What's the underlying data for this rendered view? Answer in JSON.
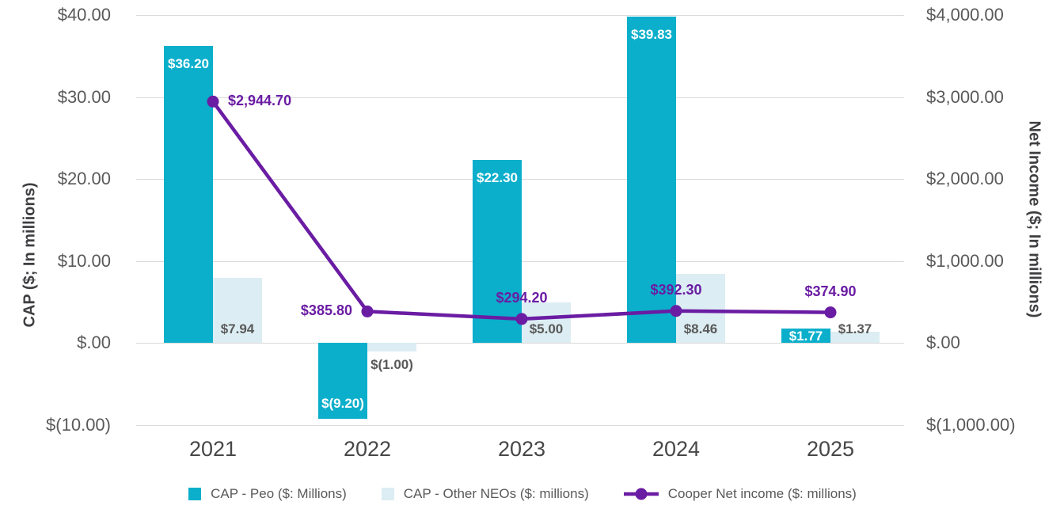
{
  "chart_data": {
    "type": "combo-bar-line",
    "title": "",
    "categories": [
      "2021",
      "2022",
      "2023",
      "2024",
      "2025"
    ],
    "series": [
      {
        "name": "CAP - Peo ($: Millions)",
        "type": "bar",
        "axis": "left",
        "color": "#0bafcb",
        "label_color": "#ffffff",
        "values": [
          36.2,
          -9.2,
          22.3,
          39.83,
          1.77
        ],
        "labels": [
          "$36.20",
          "$(9.20)",
          "$22.30",
          "$39.83",
          "$1.77"
        ]
      },
      {
        "name": "CAP - Other NEOs ($: millions)",
        "type": "bar",
        "axis": "left",
        "color": "#dcedf3",
        "label_color": "#595959",
        "values": [
          7.94,
          -1.0,
          5.0,
          8.46,
          1.37
        ],
        "labels": [
          "$7.94",
          "$(1.00)",
          "$5.00",
          "$8.46",
          "$1.37"
        ]
      },
      {
        "name": "Cooper Net income ($: millions)",
        "type": "line",
        "axis": "right",
        "color": "#6a1ca3",
        "label_color": "#6a1ca3",
        "values": [
          2944.7,
          385.8,
          294.2,
          392.3,
          374.9
        ],
        "labels": [
          "$2,944.70",
          "$385.80",
          "$294.20",
          "$392.30",
          "$374.90"
        ],
        "label_positions": [
          "right",
          "left",
          "top",
          "top",
          "top"
        ]
      }
    ],
    "left_axis": {
      "title": "CAP ($; In millions)",
      "ticks": [
        "$40.00",
        "$30.00",
        "$20.00",
        "$10.00",
        "$.00",
        "$(10.00)"
      ],
      "tick_values": [
        40,
        30,
        20,
        10,
        0,
        -10
      ],
      "range": [
        -10,
        40
      ]
    },
    "right_axis": {
      "title": "Net Income ($; In millions)",
      "ticks": [
        "$4,000.00",
        "$3,000.00",
        "$2,000.00",
        "$1,000.00",
        "$.00",
        "$(1,000.00)"
      ],
      "tick_values": [
        4000,
        3000,
        2000,
        1000,
        0,
        -1000
      ],
      "range": [
        -1000,
        4000
      ]
    },
    "grid": true,
    "legend_position": "bottom"
  },
  "colors": {
    "gridline": "#dadada",
    "tick_text": "#595959",
    "year_text": "#474747",
    "axis_title_text": "#3f3f42",
    "background": "#ffffff"
  }
}
